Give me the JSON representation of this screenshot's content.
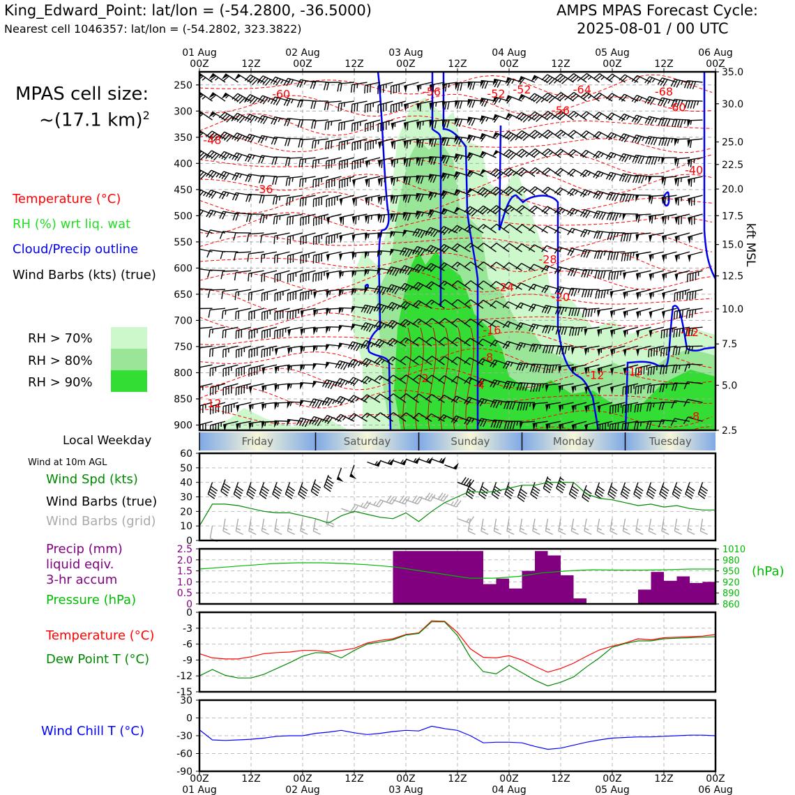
{
  "header": {
    "station_line": "King_Edward_Point: lat/lon = (-54.2800, -36.5000)",
    "cell_line": "Nearest cell 1046357: lat/lon = (-54.2802, 323.3822)",
    "forecast_title": "AMPS MPAS Forecast Cycle:",
    "forecast_cycle": "2025-08-01 / 00 UTC"
  },
  "cell_size": {
    "label": "MPAS cell size:",
    "value": "~(17.1 km)",
    "exponent": "2"
  },
  "legend_profile": {
    "temperature": "Temperature (°C)",
    "rh": "RH (%) wrt liq. wat",
    "cloud": "Cloud/Precip outline",
    "wind": "Wind Barbs (kts) (true)",
    "rh70": "RH > 70%",
    "rh80": "RH > 80%",
    "rh90": "RH > 90%"
  },
  "legend_wind": {
    "weekday_label": "Local Weekday",
    "height_note": "Wind at 10m AGL",
    "speed": "Wind Spd (kts)",
    "barbs_true": "Wind Barbs (true)",
    "barbs_grid": "Wind Barbs (grid)"
  },
  "legend_precip": {
    "precip": "Precip (mm)",
    "liquid": "liquid eqiv.",
    "accum": "3-hr accum",
    "pressure": "Pressure (hPa)",
    "pressure_unit": "(hPa)"
  },
  "legend_temp": {
    "temperature": "Temperature (°C)",
    "dewpoint": "Dew Point T (°C)"
  },
  "legend_chill": {
    "wind_chill": "Wind Chill T (°C)"
  },
  "colors": {
    "temperature": "#ff0000",
    "rh": "#22dd22",
    "cloud": "#0000ee",
    "wind_spd": "#008800",
    "barb_grid": "#aaaaaa",
    "precip": "#800080",
    "pressure": "#00bb00",
    "wind_chill": "#0000ff",
    "rh70": "#ccf8cc",
    "rh80": "#99e699",
    "rh90": "#33dd33"
  },
  "time_axis": {
    "tick_labels": [
      "00Z",
      "12Z",
      "00Z",
      "12Z",
      "00Z",
      "12Z",
      "00Z",
      "12Z",
      "00Z",
      "12Z",
      "00Z"
    ],
    "day_labels": [
      "01 Aug",
      "02 Aug",
      "03 Aug",
      "04 Aug",
      "05 Aug",
      "06 Aug"
    ],
    "hours_range": [
      0,
      120
    ]
  },
  "chart_data": [
    {
      "type": "heatmap",
      "panel": "vertical-profile",
      "y_left_label": "",
      "y_right_label": "kft MSL",
      "y_left_ticks": [
        "250",
        "300",
        "350",
        "400",
        "450",
        "500",
        "550",
        "600",
        "650",
        "700",
        "750",
        "800",
        "850",
        "900"
      ],
      "y_right_ticks": [
        "35.0",
        "30.0",
        "25.0",
        "22.5",
        "20.0",
        "17.5",
        "15.0",
        "12.5",
        "10.0",
        "7.5",
        "5.0",
        "2.5"
      ],
      "temperature_labels": [
        {
          "text": "-60",
          "t": 19,
          "p": 267
        },
        {
          "text": "-56",
          "t": 54,
          "p": 262
        },
        {
          "text": "-52",
          "t": 69,
          "p": 266
        },
        {
          "text": "-52",
          "t": 75,
          "p": 258
        },
        {
          "text": "-64",
          "t": 89,
          "p": 258
        },
        {
          "text": "-68",
          "t": 108,
          "p": 262
        },
        {
          "text": "-60",
          "t": 111,
          "p": 292
        },
        {
          "text": "-56",
          "t": 84,
          "p": 298
        },
        {
          "text": "-48",
          "t": 3,
          "p": 355
        },
        {
          "text": "-40",
          "t": 115,
          "p": 412
        },
        {
          "text": "-36",
          "t": 15,
          "p": 449
        },
        {
          "text": "-28",
          "t": 81,
          "p": 583
        },
        {
          "text": "-24",
          "t": 71,
          "p": 636
        },
        {
          "text": "-20",
          "t": 84,
          "p": 655
        },
        {
          "text": "-16",
          "t": 68,
          "p": 718
        },
        {
          "text": "-12",
          "t": 114,
          "p": 722
        },
        {
          "text": "-8",
          "t": 67,
          "p": 770
        },
        {
          "text": "-12",
          "t": 92,
          "p": 804
        },
        {
          "text": "-12",
          "t": 101,
          "p": 797
        },
        {
          "text": "-4",
          "t": 65,
          "p": 823
        },
        {
          "text": "-12",
          "t": 3,
          "p": 858
        },
        {
          "text": "-8",
          "t": 115,
          "p": 883
        },
        {
          "text": "-2",
          "t": 52,
          "p": 810
        }
      ]
    },
    {
      "type": "line",
      "panel": "surface-wind",
      "ylim": [
        0,
        60
      ],
      "y_ticks": [
        "0",
        "10",
        "20",
        "30",
        "40",
        "50",
        "60"
      ],
      "x": [
        0,
        3,
        6,
        9,
        12,
        15,
        18,
        21,
        24,
        27,
        30,
        33,
        36,
        39,
        42,
        45,
        48,
        51,
        54,
        57,
        60,
        63,
        66,
        69,
        72,
        75,
        78,
        81,
        84,
        87,
        90,
        93,
        96,
        99,
        102,
        105,
        108,
        111,
        114,
        117,
        120
      ],
      "series": [
        {
          "name": "Wind Spd (kts)",
          "values": [
            10,
            25,
            25,
            24,
            22,
            20,
            19,
            19,
            17,
            15,
            12,
            17,
            20,
            18,
            16,
            15,
            19,
            13,
            20,
            26,
            30,
            34,
            33,
            34,
            36,
            38,
            38,
            40,
            40,
            40,
            32,
            29,
            28,
            26,
            24,
            25,
            23,
            24,
            22,
            21,
            21
          ]
        }
      ],
      "barbs_true_speed": [
        40,
        40,
        42,
        40,
        40,
        40,
        40,
        40,
        40,
        42,
        45,
        50,
        52,
        54,
        55,
        55,
        56,
        56,
        56,
        52,
        40,
        40,
        40,
        40,
        40,
        38,
        40,
        44,
        44,
        40,
        38,
        40,
        40,
        40,
        40,
        40,
        40,
        40,
        40,
        40,
        40
      ],
      "barbs_grid_speed": [
        10,
        10,
        15,
        15,
        15,
        15,
        15,
        15,
        15,
        15,
        20,
        22,
        25,
        26,
        28,
        28,
        28,
        30,
        30,
        26,
        15,
        15,
        15,
        15,
        15,
        15,
        15,
        15,
        15,
        15,
        15,
        15,
        15,
        15,
        15,
        15,
        15,
        15,
        15,
        15,
        15
      ]
    },
    {
      "type": "bar",
      "panel": "precip-pressure",
      "ylim": [
        0,
        2.5
      ],
      "y_ticks": [
        "0",
        "0.5",
        "1.0",
        "1.5",
        "2.0",
        "2.5"
      ],
      "y_right_ticks": [
        "860",
        "890",
        "920",
        "950",
        "980",
        "1010"
      ],
      "y_right_range": [
        860,
        1010
      ],
      "bin_start_hours": [
        0,
        3,
        6,
        9,
        12,
        15,
        18,
        21,
        24,
        27,
        30,
        33,
        36,
        39,
        42,
        45,
        48,
        51,
        54,
        57,
        60,
        63,
        66,
        69,
        72,
        75,
        78,
        81,
        84,
        87,
        90,
        93,
        96,
        99,
        102,
        105,
        108,
        111,
        114,
        117
      ],
      "values": [
        0,
        0,
        0,
        0,
        0,
        0,
        0,
        0,
        0,
        0,
        0,
        0,
        0,
        0,
        0,
        0,
        0,
        0,
        0,
        0,
        0,
        0,
        0,
        0,
        0,
        0,
        0,
        0,
        0,
        0,
        0,
        0,
        0,
        0,
        0,
        0,
        0,
        0,
        0,
        0
      ],
      "precip_mm": [
        0,
        0,
        0,
        0,
        0,
        0,
        0,
        0,
        0,
        0,
        0,
        0,
        0,
        0,
        0,
        2.4,
        2.4,
        2.4,
        2.4,
        2.4,
        2.4,
        2.4,
        0.9,
        1.15,
        0.7,
        1.5,
        2.4,
        2.2,
        1.3,
        0.25,
        0,
        0,
        0,
        0,
        0.65,
        1.45,
        1.05,
        1.25,
        0.95,
        1.0
      ],
      "pressure_hpa": [
        955,
        960,
        965,
        970,
        972,
        972,
        970,
        966,
        960,
        950,
        940,
        930,
        930,
        935,
        945,
        950,
        953,
        952,
        952,
        953,
        955,
        955
      ]
    },
    {
      "type": "line",
      "panel": "temperature",
      "ylim": [
        -15,
        0
      ],
      "y_ticks": [
        "0",
        "-3",
        "-6",
        "-9",
        "-12",
        "-15"
      ],
      "x": [
        0,
        3,
        6,
        9,
        12,
        15,
        18,
        21,
        24,
        27,
        30,
        33,
        36,
        39,
        42,
        45,
        48,
        51,
        54,
        57,
        60,
        63,
        66,
        69,
        72,
        75,
        78,
        81,
        84,
        87,
        90,
        93,
        96,
        99,
        102,
        105,
        108,
        111,
        114,
        117,
        120
      ],
      "series": [
        {
          "name": "Temperature (°C)",
          "values": [
            -7.8,
            -8.6,
            -8.8,
            -8.8,
            -8.4,
            -7.8,
            -7.6,
            -7.5,
            -7.2,
            -7.2,
            -7.5,
            -7.2,
            -6.8,
            -5.8,
            -5.3,
            -5.0,
            -4.2,
            -3.9,
            -1.6,
            -1.7,
            -3.8,
            -6.9,
            -8.5,
            -8.6,
            -8.2,
            -9.0,
            -10.2,
            -11.3,
            -10.6,
            -9.6,
            -8.3,
            -7.1,
            -6.4,
            -5.8,
            -5.0,
            -5.2,
            -4.8,
            -4.7,
            -4.6,
            -4.5,
            -4.2
          ],
          "color": "#ff0000"
        },
        {
          "name": "Dew Point T (°C)",
          "values": [
            -12.0,
            -10.8,
            -11.9,
            -12.4,
            -12.4,
            -11.7,
            -10.6,
            -9.5,
            -8.3,
            -7.6,
            -7.7,
            -8.6,
            -7.2,
            -6.0,
            -5.6,
            -5.2,
            -4.3,
            -4.0,
            -1.8,
            -1.8,
            -4.4,
            -8.5,
            -11.2,
            -11.6,
            -10.0,
            -11.4,
            -12.8,
            -13.9,
            -13.2,
            -12.2,
            -10.3,
            -8.6,
            -6.6,
            -5.9,
            -5.4,
            -5.4,
            -5.0,
            -4.9,
            -4.8,
            -4.7,
            -4.6
          ],
          "color": "#008800"
        }
      ]
    },
    {
      "type": "line",
      "panel": "wind-chill",
      "ylim": [
        -90,
        30
      ],
      "y_ticks": [
        "30",
        "0",
        "-30",
        "-60",
        "-90"
      ],
      "x": [
        0,
        3,
        6,
        9,
        12,
        15,
        18,
        21,
        24,
        27,
        30,
        33,
        36,
        39,
        42,
        45,
        48,
        51,
        54,
        57,
        60,
        63,
        66,
        69,
        72,
        75,
        78,
        81,
        84,
        87,
        90,
        93,
        96,
        99,
        102,
        105,
        108,
        111,
        114,
        117,
        120
      ],
      "series": [
        {
          "name": "Wind Chill T (°C)",
          "values": [
            -20,
            -37,
            -38,
            -37,
            -36,
            -34,
            -31,
            -30,
            -30,
            -26,
            -24,
            -21,
            -25,
            -28,
            -26,
            -23,
            -21,
            -22,
            -14,
            -18,
            -21,
            -30,
            -42,
            -41,
            -41,
            -42,
            -48,
            -53,
            -51,
            -46,
            -41,
            -37,
            -34,
            -33,
            -32,
            -32,
            -31,
            -30,
            -29,
            -29,
            -30
          ],
          "color": "#0000ff"
        }
      ]
    }
  ],
  "weekdays": [
    "Friday",
    "Saturday",
    "Sunday",
    "Monday",
    "Tuesday"
  ]
}
